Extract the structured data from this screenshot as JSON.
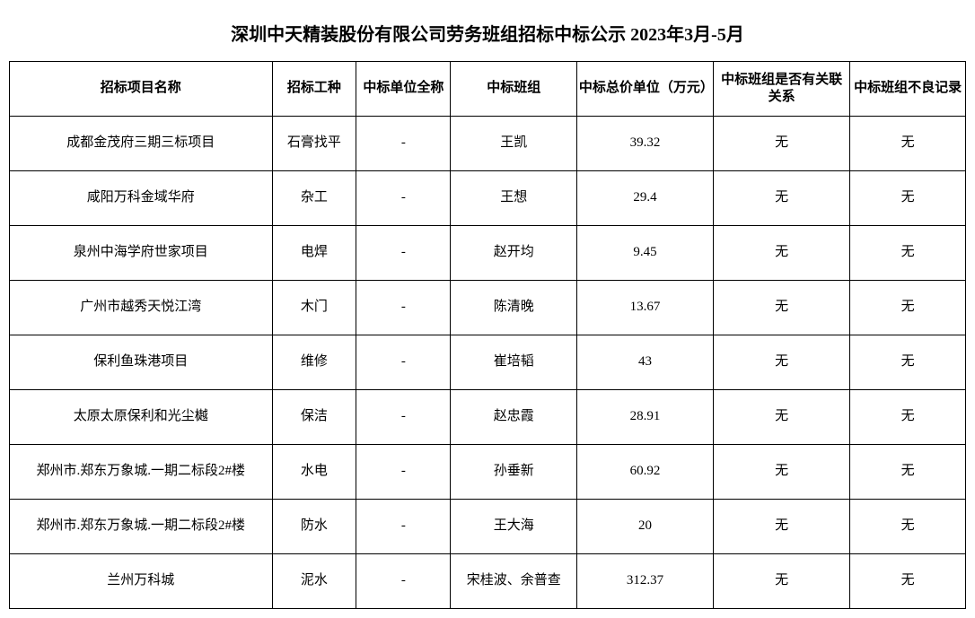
{
  "title": "深圳中天精装股份有限公司劳务班组招标中标公示 2023年3月-5月",
  "headers": {
    "name": "招标项目名称",
    "trade": "招标工种",
    "unit": "中标单位全称",
    "team": "中标班组",
    "price": "中标总价单位（万元）",
    "related": "中标班组是否有关联关系",
    "record": "中标班组不良记录"
  },
  "rows": [
    {
      "name": "成都金茂府三期三标项目",
      "trade": "石膏找平",
      "unit": "-",
      "team": "王凯",
      "price": "39.32",
      "related": "无",
      "record": "无"
    },
    {
      "name": "咸阳万科金域华府",
      "trade": "杂工",
      "unit": "-",
      "team": "王想",
      "price": "29.4",
      "related": "无",
      "record": "无"
    },
    {
      "name": "泉州中海学府世家项目",
      "trade": "电焊",
      "unit": "-",
      "team": "赵开均",
      "price": "9.45",
      "related": "无",
      "record": "无"
    },
    {
      "name": "广州市越秀天悦江湾",
      "trade": "木门",
      "unit": "-",
      "team": "陈清晚",
      "price": "13.67",
      "related": "无",
      "record": "无"
    },
    {
      "name": "保利鱼珠港项目",
      "trade": "维修",
      "unit": "-",
      "team": "崔培韬",
      "price": "43",
      "related": "无",
      "record": "无"
    },
    {
      "name": "太原太原保利和光尘樾",
      "trade": "保洁",
      "unit": "-",
      "team": "赵忠霞",
      "price": "28.91",
      "related": "无",
      "record": "无"
    },
    {
      "name": "郑州市.郑东万象城.一期二标段2#楼",
      "trade": "水电",
      "unit": "-",
      "team": "孙垂新",
      "price": "60.92",
      "related": "无",
      "record": "无"
    },
    {
      "name": "郑州市.郑东万象城.一期二标段2#楼",
      "trade": "防水",
      "unit": "-",
      "team": "王大海",
      "price": "20",
      "related": "无",
      "record": "无"
    },
    {
      "name": "兰州万科城",
      "trade": "泥水",
      "unit": "-",
      "team": "宋桂波、余普查",
      "price": "312.37",
      "related": "无",
      "record": "无"
    }
  ]
}
